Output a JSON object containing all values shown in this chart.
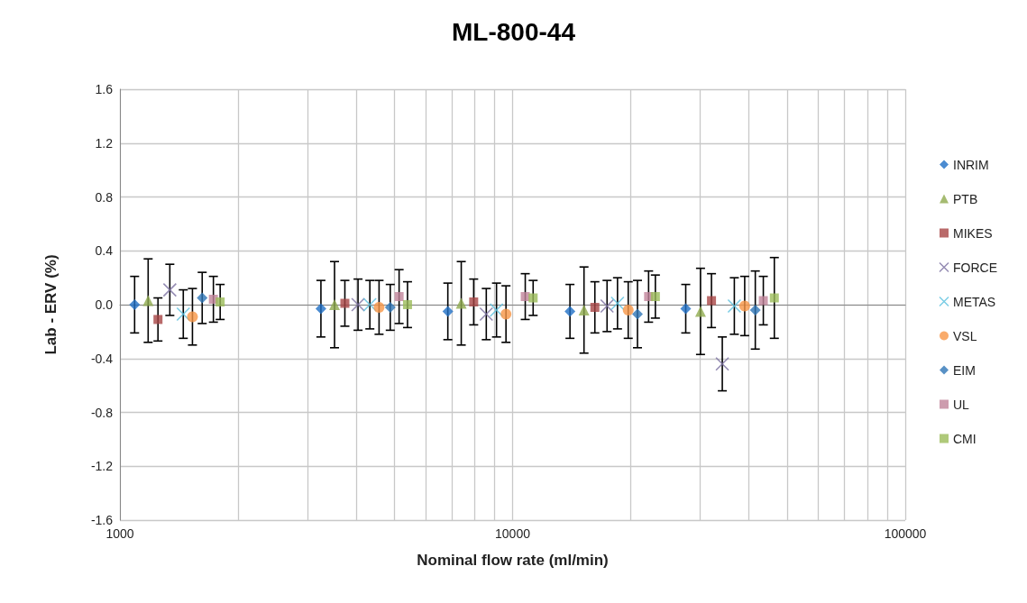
{
  "chart_data": {
    "type": "scatter",
    "title": "ML-800-44",
    "xlabel": "Nominal flow rate (ml/min)",
    "ylabel": "Lab - ERV (%)",
    "log": "x",
    "grid": true,
    "legend": "right",
    "xlim": [
      1000,
      100000
    ],
    "xticks": [
      1000,
      10000,
      100000
    ],
    "ylim": [
      -1.6,
      1.6
    ],
    "yticks": [
      {
        "value": -1.6,
        "label": "-1.6"
      },
      {
        "value": -1.2,
        "label": "-1.2"
      },
      {
        "value": -0.8,
        "label": "-0.8"
      },
      {
        "value": -0.4,
        "label": "-0.4"
      },
      {
        "value": 0,
        "label": "0.0"
      },
      {
        "value": 0.4,
        "label": "0.4"
      },
      {
        "value": 0.8,
        "label": "0.8"
      },
      {
        "value": 1.2,
        "label": "1.2"
      },
      {
        "value": 1.6,
        "label": "1.6"
      }
    ],
    "series": [
      {
        "name": "INRIM",
        "color": "#1f6fc5",
        "marker": "diamond",
        "x": [
          1090,
          3250,
          6840,
          14000,
          27600
        ],
        "values": [
          0.0,
          -0.03,
          -0.05,
          -0.05,
          -0.03
        ],
        "errors": [
          0.21,
          0.21,
          0.21,
          0.2,
          0.18
        ]
      },
      {
        "name": "PTB",
        "color": "#8faa4e",
        "marker": "triangle",
        "x": [
          1180,
          3520,
          7400,
          15200,
          30100
        ],
        "values": [
          0.03,
          0.0,
          0.01,
          -0.04,
          -0.05
        ],
        "errors": [
          0.31,
          0.32,
          0.31,
          0.32,
          0.32
        ]
      },
      {
        "name": "MIKES",
        "color": "#a84545",
        "marker": "square",
        "x": [
          1250,
          3740,
          7960,
          16200,
          32100
        ],
        "values": [
          -0.11,
          0.01,
          0.02,
          -0.02,
          0.03
        ],
        "errors": [
          0.16,
          0.17,
          0.17,
          0.19,
          0.2
        ]
      },
      {
        "name": "FORCE",
        "color": "#7b6fa0",
        "marker": "cross",
        "x": [
          1340,
          4040,
          8570,
          17400,
          34200
        ],
        "values": [
          0.11,
          0.0,
          -0.07,
          -0.01,
          -0.44
        ],
        "errors": [
          0.19,
          0.19,
          0.19,
          0.19,
          0.2
        ]
      },
      {
        "name": "METAS",
        "color": "#5bc0de",
        "marker": "cross",
        "x": [
          1450,
          4330,
          9100,
          18500,
          36700
        ],
        "values": [
          -0.07,
          0.0,
          -0.04,
          0.01,
          -0.01
        ],
        "errors": [
          0.18,
          0.18,
          0.2,
          0.19,
          0.21
        ]
      },
      {
        "name": "VSL",
        "color": "#f79646",
        "marker": "circle",
        "x": [
          1530,
          4570,
          9620,
          19700,
          39000
        ],
        "values": [
          -0.09,
          -0.02,
          -0.07,
          -0.04,
          -0.01
        ],
        "errors": [
          0.21,
          0.2,
          0.21,
          0.21,
          0.22
        ]
      },
      {
        "name": "EIM",
        "color": "#2e75b6",
        "marker": "diamond",
        "x": [
          1620,
          4880,
          null,
          20800,
          41500
        ],
        "values": [
          0.05,
          -0.02,
          null,
          -0.07,
          -0.04
        ],
        "errors": [
          0.19,
          0.17,
          null,
          0.25,
          0.29
        ]
      },
      {
        "name": "UL",
        "color": "#c0839a",
        "marker": "square",
        "x": [
          1730,
          5140,
          10770,
          22200,
          43500
        ],
        "values": [
          0.04,
          0.06,
          0.06,
          0.06,
          0.03
        ],
        "errors": [
          0.17,
          0.2,
          0.17,
          0.19,
          0.18
        ]
      },
      {
        "name": "CMI",
        "color": "#9bbb59",
        "marker": "square",
        "x": [
          1800,
          5400,
          11280,
          23100,
          46400
        ],
        "values": [
          0.02,
          0.0,
          0.05,
          0.06,
          0.05
        ],
        "errors": [
          0.13,
          0.17,
          0.13,
          0.16,
          0.3
        ]
      }
    ]
  }
}
